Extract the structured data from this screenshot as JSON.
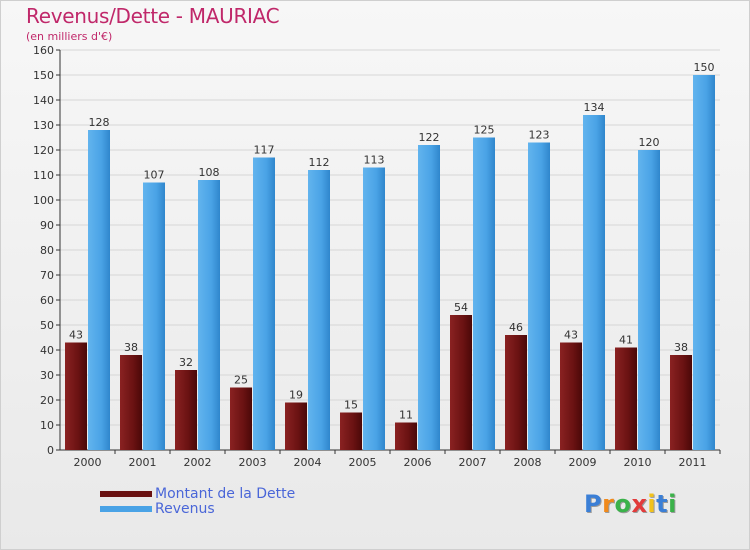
{
  "chart_data": {
    "type": "bar",
    "title": "Revenus/Dette - MAURIAC",
    "subtitle": "(en milliers d'€)",
    "categories": [
      "2000",
      "2001",
      "2002",
      "2003",
      "2004",
      "2005",
      "2006",
      "2007",
      "2008",
      "2009",
      "2010",
      "2011"
    ],
    "series": [
      {
        "name": "Montant de la Dette",
        "color": "#7a1a1a",
        "values": [
          43,
          38,
          32,
          25,
          19,
          15,
          11,
          54,
          46,
          43,
          41,
          38
        ]
      },
      {
        "name": "Revenus",
        "color": "#4aa3e6",
        "values": [
          128,
          107,
          108,
          117,
          112,
          113,
          122,
          125,
          123,
          134,
          120,
          150
        ]
      }
    ],
    "yticks": [
      0,
      10,
      20,
      30,
      40,
      50,
      60,
      70,
      80,
      90,
      100,
      110,
      120,
      130,
      140,
      150,
      160
    ],
    "ylim": [
      0,
      160
    ],
    "grid": true,
    "legend_position": "bottom-left"
  },
  "logo": {
    "letters": [
      "P",
      "r",
      "o",
      "x",
      "i",
      "t",
      "i"
    ],
    "colors": [
      "#3b7fd6",
      "#f08a1c",
      "#3bb24a",
      "#e23b3b",
      "#f2c21b",
      "#3b7fd6",
      "#3bb24a"
    ]
  }
}
